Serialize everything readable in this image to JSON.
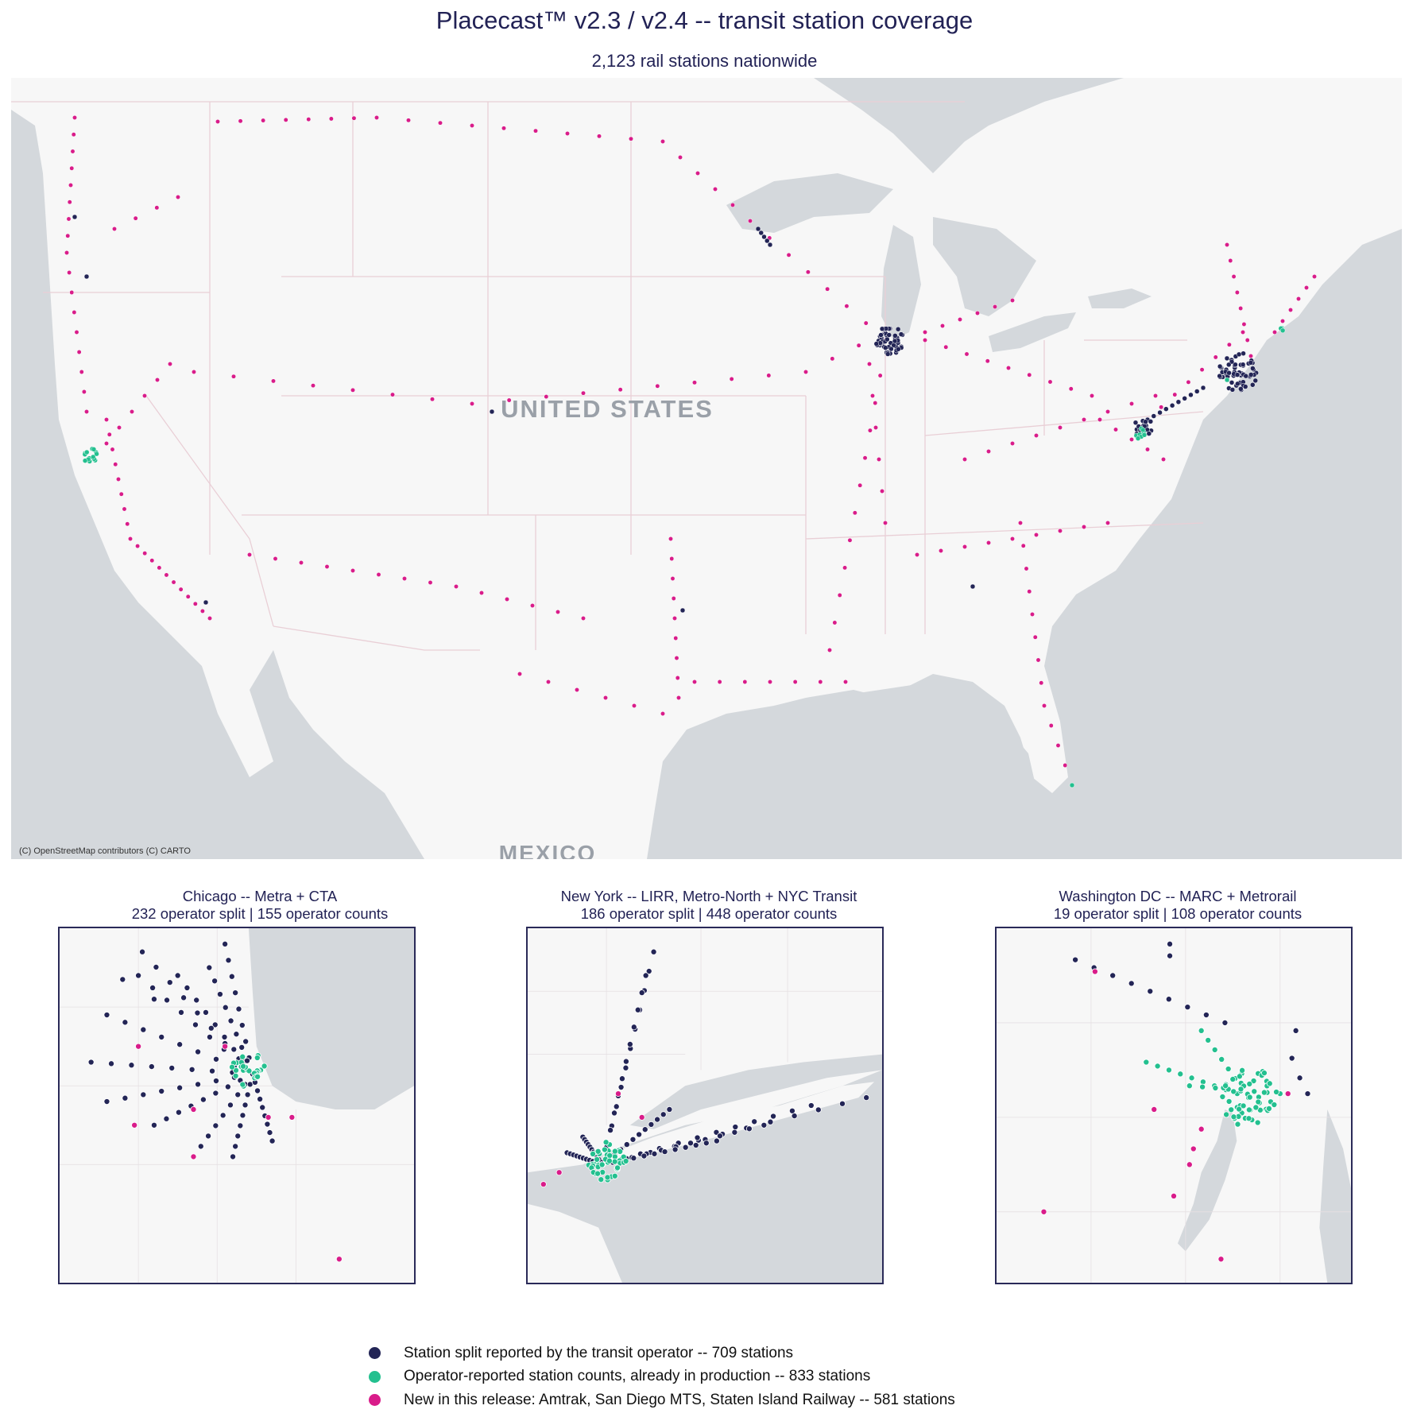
{
  "title": "Placecast™ v2.3 / v2.4 -- transit station coverage",
  "subtitle": "2,123 rail stations nationwide",
  "main_map": {
    "country_label": "UNITED STATES",
    "mexico_label": "MEXICO",
    "attribution": "(C) OpenStreetMap contributors (C) CARTO"
  },
  "colors": {
    "operator_split": "#232556",
    "operator_counts": "#23c08f",
    "new_release": "#d91c8a",
    "water": "#d4d8dc",
    "land": "#f7f7f7",
    "border": "#e9cfd6"
  },
  "insets": [
    {
      "title": "Chicago -- Metra + CTA",
      "subtitle": "232 operator split  |  155 operator counts"
    },
    {
      "title": "New York -- LIRR, Metro-North + NYC Transit",
      "subtitle": "186 operator split  |  448 operator counts"
    },
    {
      "title": "Washington DC -- MARC + Metrorail",
      "subtitle": "19 operator split  |  108 operator counts"
    }
  ],
  "legend": [
    {
      "label": "Station split reported by the transit operator -- 709 stations",
      "color": "#232556"
    },
    {
      "label": "Operator-reported station counts, already in production -- 833 stations",
      "color": "#23c08f"
    },
    {
      "label": "New in this release: Amtrak, San Diego MTS, Staten Island Railway -- 581 stations",
      "color": "#d91c8a"
    }
  ]
}
